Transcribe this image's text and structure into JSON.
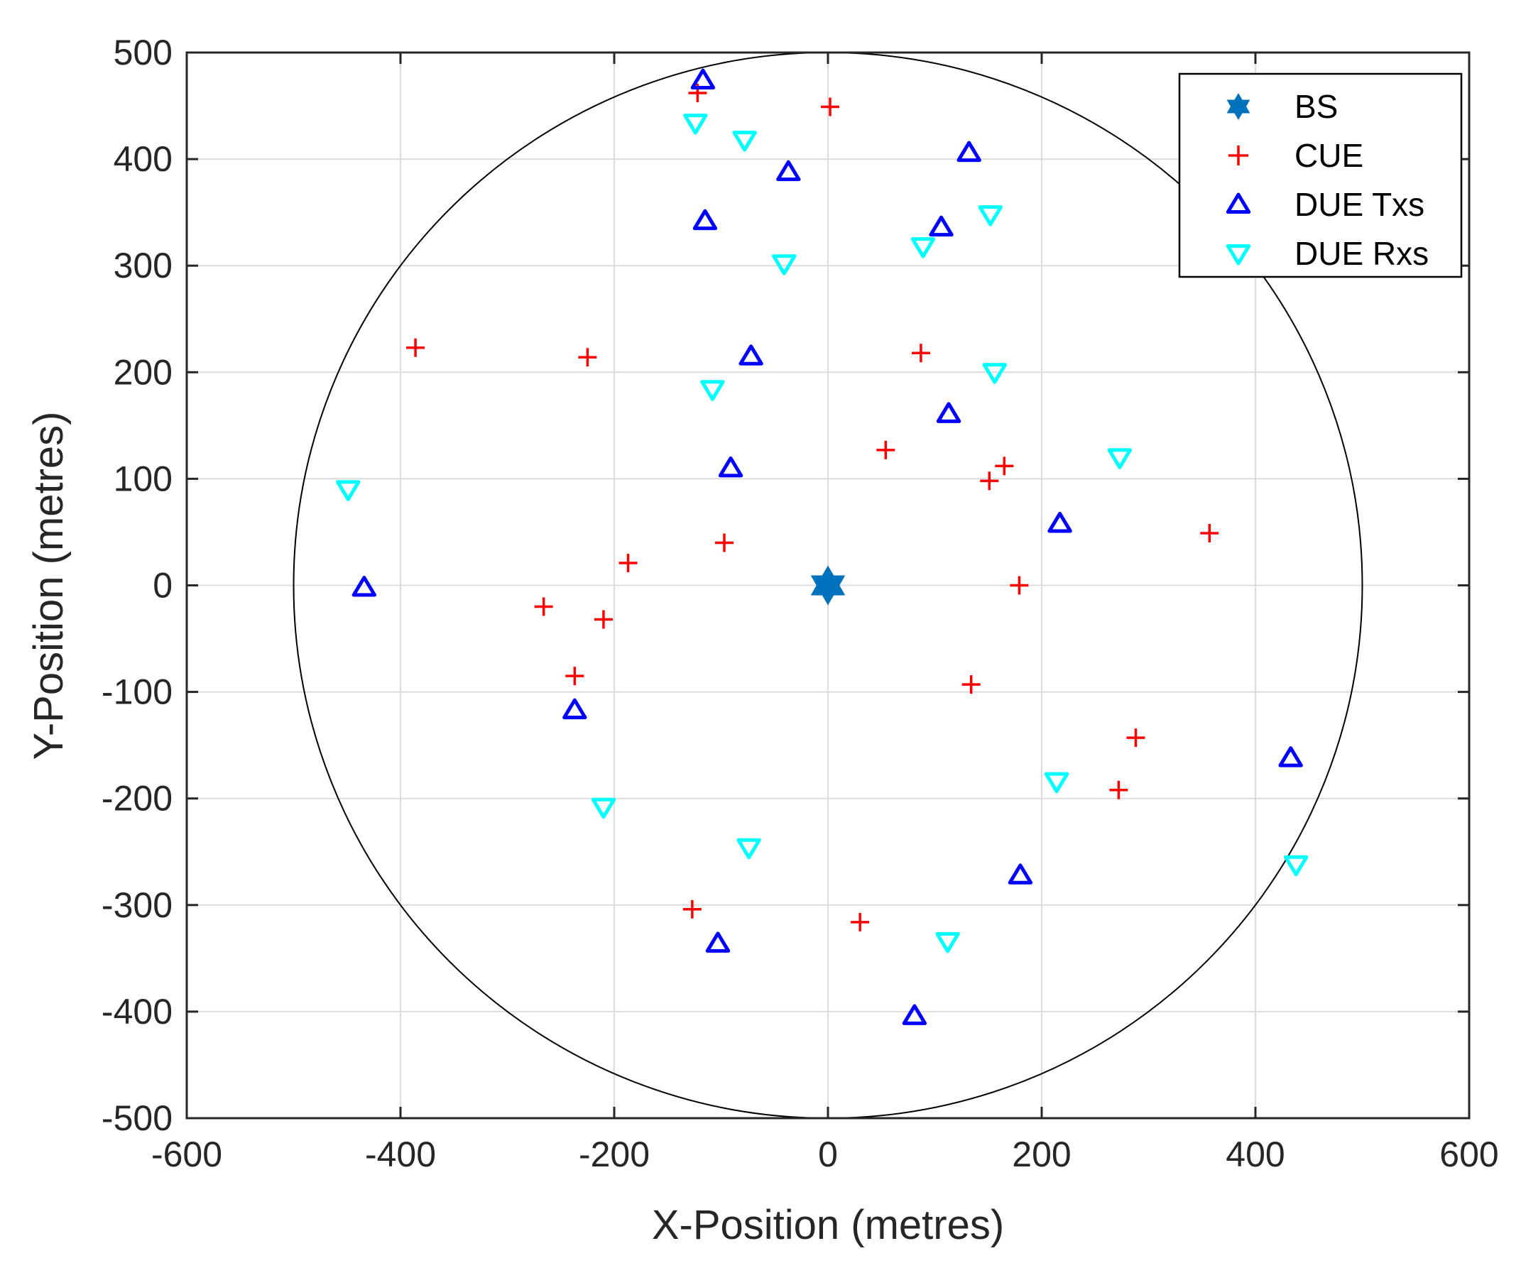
{
  "chart_data": {
    "type": "scatter",
    "title": "",
    "xlabel": "X-Position (metres)",
    "ylabel": "Y-Position (metres)",
    "xlim": [
      -600,
      600
    ],
    "ylim": [
      -500,
      500
    ],
    "xticks": [
      -600,
      -400,
      -200,
      0,
      200,
      400,
      600
    ],
    "yticks": [
      -500,
      -400,
      -300,
      -200,
      -100,
      0,
      100,
      200,
      300,
      400,
      500
    ],
    "grid": true,
    "legend_position": "top-right",
    "cell_boundary": {
      "center": [
        0,
        0
      ],
      "radius": 500,
      "color": "#000000"
    },
    "series": [
      {
        "name": "BS",
        "marker": "hexagram",
        "color": "#0072BD",
        "points": [
          [
            0,
            0
          ]
        ]
      },
      {
        "name": "CUE",
        "marker": "plus",
        "color": "#FF0000",
        "points": [
          [
            -122,
            462
          ],
          [
            2,
            449
          ],
          [
            -386,
            223
          ],
          [
            -225,
            214
          ],
          [
            87,
            218
          ],
          [
            54,
            127
          ],
          [
            165,
            112
          ],
          [
            151,
            98
          ],
          [
            -97,
            40
          ],
          [
            357,
            49
          ],
          [
            -187,
            21
          ],
          [
            -266,
            -20
          ],
          [
            -210,
            -32
          ],
          [
            179,
            0
          ],
          [
            -237,
            -85
          ],
          [
            134,
            -93
          ],
          [
            288,
            -143
          ],
          [
            272,
            -192
          ],
          [
            -127,
            -304
          ],
          [
            30,
            -316
          ]
        ]
      },
      {
        "name": "DUE Txs",
        "marker": "triangle-up",
        "color": "#0000FF",
        "points": [
          [
            -117,
            474
          ],
          [
            132,
            406
          ],
          [
            -37,
            388
          ],
          [
            -115,
            342
          ],
          [
            106,
            336
          ],
          [
            -72,
            215
          ],
          [
            113,
            161
          ],
          [
            -91,
            110
          ],
          [
            217,
            58
          ],
          [
            -434,
            -2
          ],
          [
            -237,
            -117
          ],
          [
            433,
            -162
          ],
          [
            180,
            -272
          ],
          [
            -103,
            -336
          ],
          [
            81,
            -404
          ]
        ]
      },
      {
        "name": "DUE Rxs",
        "marker": "triangle-down",
        "color": "#00FFFF",
        "points": [
          [
            -124,
            434
          ],
          [
            -78,
            418
          ],
          [
            152,
            348
          ],
          [
            89,
            318
          ],
          [
            -41,
            302
          ],
          [
            156,
            200
          ],
          [
            -108,
            184
          ],
          [
            273,
            120
          ],
          [
            -449,
            90
          ],
          [
            214,
            -184
          ],
          [
            -210,
            -208
          ],
          [
            -74,
            -246
          ],
          [
            438,
            -262
          ],
          [
            112,
            -334
          ]
        ]
      }
    ]
  }
}
